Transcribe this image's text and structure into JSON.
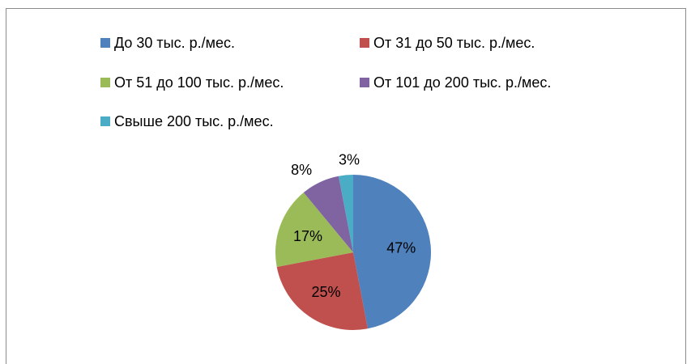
{
  "chart_data": {
    "type": "pie",
    "title": "",
    "legend_position": "top",
    "categories": [
      "До 30 тыс. р./мес.",
      "От 31 до 50 тыс. р./мес.",
      "От 51 до 100 тыс. р./мес.",
      "От 101 до 200 тыс. р./мес.",
      "Свыше 200 тыс. р./мес."
    ],
    "values": [
      47,
      25,
      17,
      8,
      3
    ],
    "data_labels": [
      "47%",
      "25%",
      "17%",
      "8%",
      "3%"
    ],
    "colors": [
      "#4f81bd",
      "#c0504d",
      "#9bbb59",
      "#8064a2",
      "#4bacc6"
    ]
  }
}
